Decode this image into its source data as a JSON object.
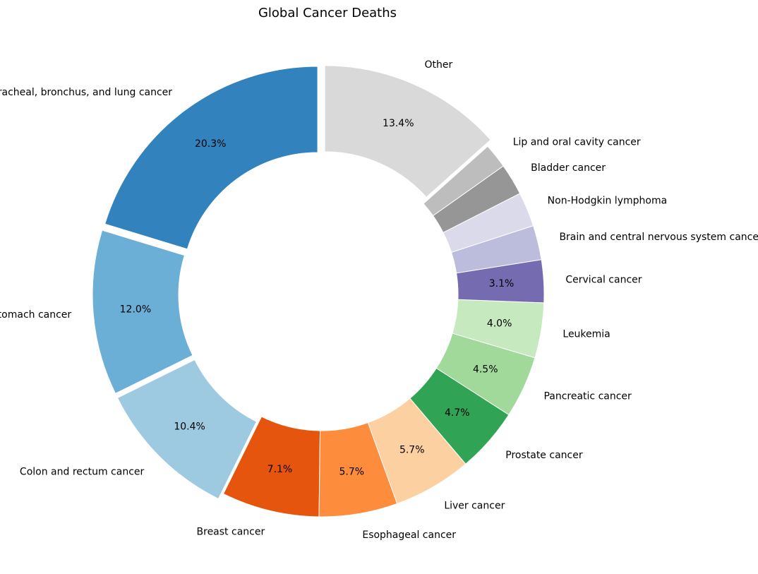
{
  "chart_data": {
    "type": "pie",
    "title": "Global Cancer Deaths",
    "donut": true,
    "start_angle_deg": 90,
    "direction": "counterclockwise",
    "slices": [
      {
        "label": "Tracheal, bronchus, and lung cancer",
        "value": 20.3,
        "pct_label": "20.3%",
        "color": "#3182bd",
        "exploded": true
      },
      {
        "label": "Stomach cancer",
        "value": 12.0,
        "pct_label": "12.0%",
        "color": "#6baed6",
        "exploded": true
      },
      {
        "label": "Colon and rectum cancer",
        "value": 10.4,
        "pct_label": "10.4%",
        "color": "#9ecae1",
        "exploded": true
      },
      {
        "label": "Breast cancer",
        "value": 7.1,
        "pct_label": "7.1%",
        "color": "#e6550d",
        "exploded": false
      },
      {
        "label": "Esophageal cancer",
        "value": 5.7,
        "pct_label": "5.7%",
        "color": "#fd8d3c",
        "exploded": false
      },
      {
        "label": "Liver cancer",
        "value": 5.7,
        "pct_label": "5.7%",
        "color": "#fdd0a2",
        "exploded": false
      },
      {
        "label": "Prostate cancer",
        "value": 4.7,
        "pct_label": "4.7%",
        "color": "#31a354",
        "exploded": false
      },
      {
        "label": "Pancreatic cancer",
        "value": 4.5,
        "pct_label": "4.5%",
        "color": "#a1d99b",
        "exploded": false
      },
      {
        "label": "Leukemia",
        "value": 4.0,
        "pct_label": "4.0%",
        "color": "#c7e9c0",
        "exploded": false
      },
      {
        "label": "Cervical cancer",
        "value": 3.1,
        "pct_label": "3.1%",
        "color": "#756bb1",
        "exploded": false
      },
      {
        "label": "Brain and central nervous system cancer",
        "value": 2.5,
        "pct_label": "",
        "color": "#bcbddc",
        "exploded": false
      },
      {
        "label": "Non-Hodgkin lymphoma",
        "value": 2.5,
        "pct_label": "",
        "color": "#dadaeb",
        "exploded": false
      },
      {
        "label": "Bladder cancer",
        "value": 2.3,
        "pct_label": "",
        "color": "#969696",
        "exploded": false
      },
      {
        "label": "Lip and oral cavity cancer",
        "value": 1.8,
        "pct_label": "",
        "color": "#bdbdbd",
        "exploded": false
      },
      {
        "label": "Other",
        "value": 13.4,
        "pct_label": "13.4%",
        "color": "#d9d9d9",
        "exploded": true
      }
    ]
  }
}
